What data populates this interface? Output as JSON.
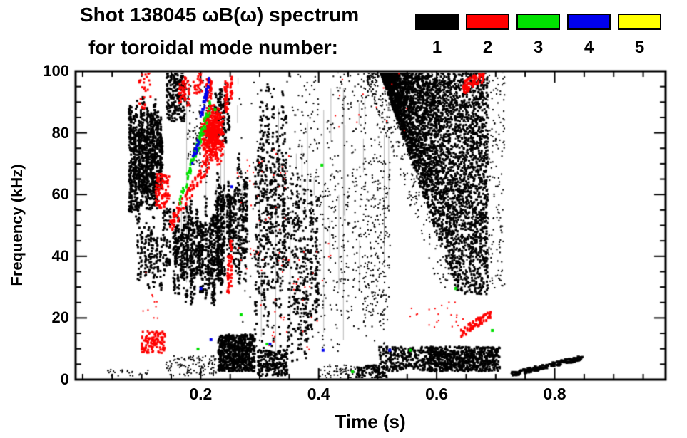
{
  "title": {
    "line1": "Shot 138045 ωB(ω) spectrum",
    "line2": "for toroidal mode number:"
  },
  "legend": {
    "entries": [
      {
        "label": "1",
        "color": "#000000"
      },
      {
        "label": "2",
        "color": "#ff0000"
      },
      {
        "label": "3",
        "color": "#00e000"
      },
      {
        "label": "4",
        "color": "#0000ee"
      },
      {
        "label": "5",
        "color": "#ffff00"
      }
    ]
  },
  "axes": {
    "x": {
      "label": "Time (s)",
      "range": [
        -0.012,
        0.988
      ],
      "major_ticks": [
        0.2,
        0.4,
        0.6,
        0.8
      ],
      "tick_labels": [
        "0.2",
        "0.4",
        "0.6",
        "0.8"
      ],
      "minor_step": 0.05
    },
    "y": {
      "label": "Frequency (kHz)",
      "range": [
        0,
        100
      ],
      "major_ticks": [
        0,
        20,
        40,
        60,
        80,
        100
      ],
      "tick_labels": [
        "0",
        "20",
        "40",
        "60",
        "80",
        "100"
      ],
      "minor_step": 5
    }
  },
  "chart_data": {
    "type": "scatter",
    "subtype": "magnetic-mode-spectrogram",
    "title": "Shot 138045 ωB(ω) spectrum for toroidal mode number",
    "xlabel": "Time (s)",
    "ylabel": "Frequency (kHz)",
    "xlim": [
      -0.012,
      0.988
    ],
    "ylim": [
      0,
      100
    ],
    "legend_position": "top-right",
    "grid": false,
    "representation": "density-clusters (t in s, f in kHz; n = approx point count)",
    "hairlines": [
      {
        "t": [
          0.16,
          0.27
        ],
        "f": [
          25,
          98
        ],
        "n": 10,
        "c": "rgba(0,0,0,0.28)"
      },
      {
        "t": [
          0.285,
          0.52
        ],
        "f": [
          5,
          95
        ],
        "n": 28,
        "c": "rgba(0,0,0,0.28)"
      },
      {
        "t": [
          0.556,
          0.56
        ],
        "f": [
          30,
          98
        ],
        "n": 2,
        "c": "#ffffff"
      }
    ],
    "series": [
      {
        "mode": 1,
        "label": "1",
        "color": "#000000",
        "clusters": [
          {
            "type": "cloud",
            "t": [
              0.04,
              0.11
            ],
            "f": [
              1,
              3.5
            ],
            "n": 28,
            "s": 2
          },
          {
            "type": "columns",
            "t": [
              0.075,
              0.135
            ],
            "f": [
              50,
              93
            ],
            "n": 900,
            "s": 3,
            "cols": 15
          },
          {
            "type": "cloud",
            "t": [
              0.08,
              0.125
            ],
            "f": [
              55,
              82
            ],
            "n": 350,
            "s": 3
          },
          {
            "type": "columns",
            "t": [
              0.09,
              0.15
            ],
            "f": [
              28,
              56
            ],
            "n": 250,
            "s": 3,
            "cols": 11
          },
          {
            "type": "cloud",
            "t": [
              0.14,
              0.172
            ],
            "f": [
              84,
              100
            ],
            "n": 210,
            "s": 3
          },
          {
            "type": "columns",
            "t": [
              0.152,
              0.235
            ],
            "f": [
              24,
              62
            ],
            "n": 980,
            "s": 3,
            "cols": 22
          },
          {
            "type": "columns",
            "t": [
              0.175,
              0.215
            ],
            "f": [
              60,
              100
            ],
            "n": 130,
            "s": 2,
            "cols": 9
          },
          {
            "type": "columns",
            "t": [
              0.222,
              0.278
            ],
            "f": [
              30,
              75
            ],
            "n": 620,
            "s": 3,
            "cols": 15
          },
          {
            "type": "columns",
            "t": [
              0.222,
              0.248
            ],
            "f": [
              75,
              100
            ],
            "n": 160,
            "s": 3,
            "cols": 6
          },
          {
            "type": "cloud",
            "t": [
              0.228,
              0.29
            ],
            "f": [
              3,
              15
            ],
            "n": 700,
            "s": 3
          },
          {
            "type": "cloud",
            "t": [
              0.14,
              0.225
            ],
            "f": [
              1.5,
              8
            ],
            "n": 120,
            "s": 2
          },
          {
            "type": "columns",
            "t": [
              0.29,
              0.345
            ],
            "f": [
              8,
              97
            ],
            "n": 620,
            "s": 3,
            "cols": 15
          },
          {
            "type": "cloud",
            "t": [
              0.295,
              0.345
            ],
            "f": [
              1.5,
              10
            ],
            "n": 220,
            "s": 3
          },
          {
            "type": "columns",
            "t": [
              0.347,
              0.398
            ],
            "f": [
              4,
              70
            ],
            "n": 400,
            "s": 3,
            "cols": 13
          },
          {
            "type": "cloud",
            "t": [
              0.345,
              0.4
            ],
            "f": [
              50,
              100
            ],
            "n": 100,
            "s": 2
          },
          {
            "type": "columns",
            "t": [
              0.4,
              0.478
            ],
            "f": [
              5,
              95
            ],
            "n": 220,
            "s": 2,
            "cols": 19
          },
          {
            "type": "cloud",
            "t": [
              0.4,
              0.468
            ],
            "f": [
              0.5,
              5
            ],
            "n": 65,
            "s": 2
          },
          {
            "type": "cloud",
            "t": [
              0.462,
              0.515
            ],
            "f": [
              0.5,
              5
            ],
            "n": 105,
            "s": 3
          },
          {
            "type": "columns",
            "t": [
              0.475,
              0.52
            ],
            "f": [
              10,
              95
            ],
            "n": 260,
            "s": 2,
            "cols": 13
          },
          {
            "type": "wedge",
            "t": [
              0.48,
              0.66
            ],
            "f": [
              30,
              100
            ],
            "n": 600,
            "s": 2,
            "top": 100,
            "slope": 550,
            "floor": 30,
            "t0": 0.475
          },
          {
            "type": "wedge",
            "t": [
              0.5,
              0.685
            ],
            "f": [
              28,
              100
            ],
            "n": 4200,
            "s": 3,
            "top": 100,
            "slope": 550,
            "floor": 28,
            "t0": 0.503
          },
          {
            "type": "cloud",
            "t": [
              0.683,
              0.714
            ],
            "f": [
              30,
              100
            ],
            "n": 150,
            "s": 2
          },
          {
            "type": "cloud",
            "t": [
              0.5,
              0.705
            ],
            "f": [
              3,
              11
            ],
            "n": 620,
            "s": 3
          },
          {
            "type": "cloud",
            "t": [
              0.585,
              0.705
            ],
            "f": [
              3,
              11
            ],
            "n": 430,
            "s": 3
          },
          {
            "type": "line",
            "from": [
              0.725,
              2
            ],
            "to": [
              0.845,
              7.5
            ],
            "n": 150,
            "s": 3
          },
          {
            "type": "cloud",
            "t": [
              0.26,
              0.52
            ],
            "f": [
              10,
              100
            ],
            "n": 170,
            "s": 2
          },
          {
            "type": "cloud",
            "t": [
              0.43,
              0.49
            ],
            "f": [
              88,
              100
            ],
            "n": 50,
            "s": 2
          }
        ]
      },
      {
        "mode": 2,
        "label": "2",
        "color": "#ff0000",
        "clusters": [
          {
            "type": "cloud",
            "t": [
              0.198,
              0.238
            ],
            "f": [
              70,
              90
            ],
            "n": 520,
            "s": 3,
            "bias": 1
          },
          {
            "type": "cloud",
            "t": [
              0.098,
              0.138
            ],
            "f": [
              9,
              16
            ],
            "n": 120,
            "s": 3
          },
          {
            "type": "cloud",
            "t": [
              0.122,
              0.145
            ],
            "f": [
              56,
              67
            ],
            "n": 95,
            "s": 3
          },
          {
            "type": "diag",
            "from": [
              0.146,
              50
            ],
            "to": [
              0.212,
              71
            ],
            "n": 85,
            "s": 3,
            "jitter": 2.5
          },
          {
            "type": "columns",
            "t": [
              0.162,
              0.178
            ],
            "f": [
              88,
              100
            ],
            "n": 60,
            "s": 3,
            "cols": 4
          },
          {
            "type": "cloud",
            "t": [
              0.186,
              0.202
            ],
            "f": [
              93,
              100
            ],
            "n": 28,
            "s": 3
          },
          {
            "type": "columns",
            "t": [
              0.207,
              0.216
            ],
            "f": [
              88,
              100
            ],
            "n": 45,
            "s": 3,
            "cols": 2
          },
          {
            "type": "columns",
            "t": [
              0.237,
              0.251
            ],
            "f": [
              86,
              100
            ],
            "n": 55,
            "s": 3,
            "cols": 3
          },
          {
            "type": "columns",
            "t": [
              0.243,
              0.253
            ],
            "f": [
              23,
              46
            ],
            "n": 65,
            "s": 3,
            "cols": 2
          },
          {
            "type": "cloud",
            "t": [
              0.26,
              0.35
            ],
            "f": [
              35,
              75
            ],
            "n": 45,
            "s": 2
          },
          {
            "type": "cloud",
            "t": [
              0.3,
              0.42
            ],
            "f": [
              10,
              45
            ],
            "n": 35,
            "s": 2
          },
          {
            "type": "diag",
            "from": [
              0.637,
              15
            ],
            "to": [
              0.69,
              22
            ],
            "n": 60,
            "s": 3,
            "jitter": 1.5
          },
          {
            "type": "diag",
            "from": [
              0.643,
              95
            ],
            "to": [
              0.678,
              99
            ],
            "n": 70,
            "s": 3,
            "jitter": 2
          },
          {
            "type": "cloud",
            "t": [
              0.55,
              0.645
            ],
            "f": [
              17,
              26
            ],
            "n": 22,
            "s": 2
          },
          {
            "type": "cloud",
            "t": [
              0.42,
              0.55
            ],
            "f": [
              80,
              100
            ],
            "n": 14,
            "s": 2
          },
          {
            "type": "cloud",
            "t": [
              0.094,
              0.113
            ],
            "f": [
              88,
              100
            ],
            "n": 30,
            "s": 3
          },
          {
            "type": "cloud",
            "t": [
              0.1,
              0.135
            ],
            "f": [
              20,
              35
            ],
            "n": 10,
            "s": 2
          }
        ]
      },
      {
        "mode": 3,
        "label": "3",
        "color": "#00e000",
        "clusters": [
          {
            "type": "diag",
            "from": [
              0.163,
              58
            ],
            "to": [
              0.216,
              90
            ],
            "n": 75,
            "s": 3,
            "jitter": 2
          },
          {
            "type": "points",
            "pts": [
              [
                0.222,
                88
              ],
              [
                0.266,
                21.5
              ],
              [
                0.193,
                10.4
              ],
              [
                0.31,
                12
              ],
              [
                0.403,
                70
              ],
              [
                0.455,
                3
              ],
              [
                0.553,
                10
              ],
              [
                0.63,
                30
              ],
              [
                0.692,
                16.4
              ]
            ],
            "s": 4
          }
        ]
      },
      {
        "mode": 4,
        "label": "4",
        "color": "#0000ee",
        "clusters": [
          {
            "type": "diag",
            "from": [
              0.198,
              85
            ],
            "to": [
              0.213,
              97
            ],
            "n": 30,
            "s": 3,
            "jitter": 2
          },
          {
            "type": "diag",
            "from": [
              0.184,
              71
            ],
            "to": [
              0.197,
              79
            ],
            "n": 16,
            "s": 3,
            "jitter": 1.5
          },
          {
            "type": "points",
            "pts": [
              [
                0.25,
                63
              ],
              [
                0.215,
                13.4
              ],
              [
                0.405,
                10
              ],
              [
                0.518,
                10
              ],
              [
                0.315,
                12
              ],
              [
                0.198,
                30
              ]
            ],
            "s": 4
          }
        ]
      },
      {
        "mode": 5,
        "label": "5",
        "color": "#ffff00",
        "clusters": []
      }
    ]
  }
}
